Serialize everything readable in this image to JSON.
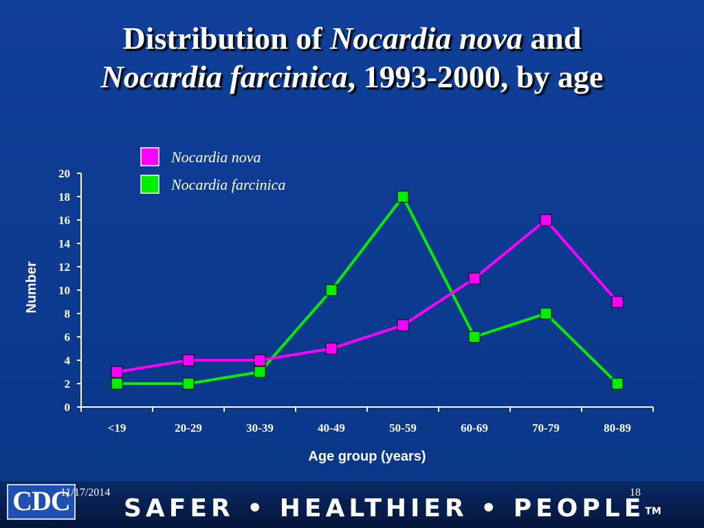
{
  "slide": {
    "title": {
      "part1": "Distribution of ",
      "part2_italic": "Nocardia nova",
      "part3": " and",
      "part4_italic": "Nocardia farcinica",
      "part5": ", 1993-2000, by age"
    },
    "footer": {
      "logo_text": "CDC",
      "date": "11/17/2014",
      "slide_number": "18",
      "slogan": "SAFER • HEALTHIER • PEOPLE",
      "trademark": "TM"
    }
  },
  "chart_data": {
    "type": "line",
    "xlabel": "Age group (years)",
    "ylabel": "Number",
    "ylim": [
      0,
      20
    ],
    "yticks": [
      "0",
      "2",
      "4",
      "6",
      "8",
      "10",
      "12",
      "14",
      "16",
      "18",
      "20"
    ],
    "categories": [
      "<19",
      "20-29",
      "30-39",
      "40-49",
      "50-59",
      "60-69",
      "70-79",
      "80-89"
    ],
    "legend_position": "top-center",
    "grid": false,
    "series": [
      {
        "name": "Nocardia nova",
        "color": "#ff00ff",
        "values": [
          3,
          4,
          4,
          5,
          7,
          11,
          16,
          9
        ]
      },
      {
        "name": "Nocardia farcinica",
        "color": "#00ee00",
        "values": [
          2,
          2,
          3,
          10,
          18,
          6,
          8,
          2
        ]
      }
    ]
  }
}
